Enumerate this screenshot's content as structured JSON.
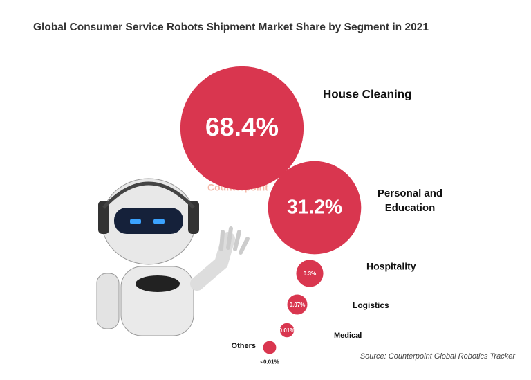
{
  "chart_data": {
    "type": "bubble",
    "title": "Global Consumer Service Robots Shipment Market Share by Segment in 2021",
    "categories": [
      "House Cleaning",
      "Personal and Education",
      "Hospitality",
      "Logistics",
      "Medical",
      "Others"
    ],
    "values": [
      68.4,
      31.2,
      0.3,
      0.07,
      0.01,
      0.005
    ],
    "value_labels": [
      "68.4%",
      "31.2%",
      "0.3%",
      "0.07%",
      "0.01%",
      "<0.01%"
    ],
    "color": "#d9364f",
    "watermark": "Counterpoint",
    "source": "Source: Counterpoint Global Robotics Tracker"
  }
}
